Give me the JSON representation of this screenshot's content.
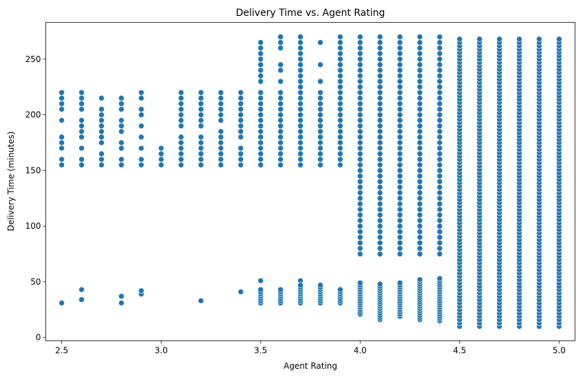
{
  "chart_data": {
    "type": "scatter",
    "title": "Delivery Time vs. Agent Rating",
    "xlabel": "Agent Rating",
    "ylabel": "Delivery Time (minutes)",
    "xlim": [
      2.42,
      5.08
    ],
    "ylim": [
      -3,
      283
    ],
    "xticks": [
      "2.5",
      "3.0",
      "3.5",
      "4.0",
      "4.5",
      "5.0"
    ],
    "yticks": [
      "0",
      "50",
      "100",
      "150",
      "200",
      "250"
    ],
    "grid": false,
    "marker_color": "#1f77b4",
    "points_by_rating": [
      {
        "x": 2.5,
        "y": [
          31,
          155,
          160,
          170,
          175,
          180,
          195,
          205,
          210,
          215,
          220
        ]
      },
      {
        "x": 2.6,
        "y": [
          34,
          43,
          155,
          160,
          170,
          180,
          185,
          190,
          195,
          205,
          210,
          215,
          220
        ]
      },
      {
        "x": 2.7,
        "y": [
          155,
          160,
          165,
          175,
          180,
          185,
          190,
          195,
          200,
          205,
          215
        ]
      },
      {
        "x": 2.8,
        "y": [
          31,
          37,
          155,
          160,
          170,
          175,
          185,
          190,
          195,
          205,
          210,
          215
        ]
      },
      {
        "x": 2.9,
        "y": [
          39,
          42,
          155,
          160,
          170,
          180,
          190,
          200,
          205,
          215,
          220
        ]
      },
      {
        "x": 3.0,
        "y": [
          155,
          160,
          165,
          170
        ]
      },
      {
        "x": 3.1,
        "y": [
          155,
          160,
          165,
          170,
          175,
          180,
          190,
          195,
          200,
          205,
          210,
          215,
          220
        ]
      },
      {
        "x": 3.2,
        "y": [
          33,
          155,
          160,
          165,
          170,
          175,
          180,
          190,
          195,
          200,
          205,
          210,
          215,
          220
        ]
      },
      {
        "x": 3.3,
        "y": [
          155,
          160,
          165,
          170,
          175,
          180,
          185,
          195,
          200,
          205,
          210,
          215,
          220
        ]
      },
      {
        "x": 3.4,
        "y": [
          41,
          155,
          160,
          165,
          170,
          180,
          185,
          190,
          195,
          200,
          205,
          210,
          215,
          220
        ]
      },
      {
        "x": 3.5,
        "y_groups": [
          {
            "from": 31,
            "to": 43,
            "step": 2
          },
          {
            "from": 155,
            "to": 220,
            "step": 5
          }
        ],
        "y": [
          51,
          230,
          235,
          240,
          245,
          250,
          255,
          260,
          265
        ]
      },
      {
        "x": 3.6,
        "y_groups": [
          {
            "from": 31,
            "to": 43,
            "step": 2
          },
          {
            "from": 155,
            "to": 220,
            "step": 5
          }
        ],
        "y": [
          230,
          240,
          245,
          260,
          265,
          270
        ]
      },
      {
        "x": 3.7,
        "y_groups": [
          {
            "from": 31,
            "to": 47,
            "step": 2
          },
          {
            "from": 155,
            "to": 270,
            "step": 5
          }
        ],
        "y": [
          51
        ]
      },
      {
        "x": 3.8,
        "y_groups": [
          {
            "from": 31,
            "to": 47,
            "step": 2
          },
          {
            "from": 155,
            "to": 220,
            "step": 5
          }
        ],
        "y": [
          230,
          245,
          265
        ]
      },
      {
        "x": 3.9,
        "y_groups": [
          {
            "from": 31,
            "to": 43,
            "step": 2
          },
          {
            "from": 155,
            "to": 270,
            "step": 5
          }
        ],
        "y": []
      },
      {
        "x": 4.0,
        "y_groups": [
          {
            "from": 21,
            "to": 49,
            "step": 2
          },
          {
            "from": 75,
            "to": 270,
            "step": 5
          }
        ],
        "y": []
      },
      {
        "x": 4.1,
        "y_groups": [
          {
            "from": 16,
            "to": 48,
            "step": 2
          },
          {
            "from": 75,
            "to": 270,
            "step": 5
          }
        ],
        "y": []
      },
      {
        "x": 4.2,
        "y_groups": [
          {
            "from": 19,
            "to": 49,
            "step": 2
          },
          {
            "from": 75,
            "to": 270,
            "step": 5
          }
        ],
        "y": []
      },
      {
        "x": 4.3,
        "y_groups": [
          {
            "from": 16,
            "to": 53,
            "step": 2
          },
          {
            "from": 75,
            "to": 270,
            "step": 5
          }
        ],
        "y": []
      },
      {
        "x": 4.4,
        "y_groups": [
          {
            "from": 15,
            "to": 53,
            "step": 2
          },
          {
            "from": 75,
            "to": 270,
            "step": 5
          }
        ],
        "y": []
      },
      {
        "x": 4.5,
        "y_groups": [
          {
            "from": 10,
            "to": 270,
            "step": 3
          }
        ],
        "y": []
      },
      {
        "x": 4.6,
        "y_groups": [
          {
            "from": 10,
            "to": 270,
            "step": 3
          }
        ],
        "y": []
      },
      {
        "x": 4.7,
        "y_groups": [
          {
            "from": 10,
            "to": 270,
            "step": 3
          }
        ],
        "y": []
      },
      {
        "x": 4.8,
        "y_groups": [
          {
            "from": 10,
            "to": 270,
            "step": 3
          }
        ],
        "y": []
      },
      {
        "x": 4.9,
        "y_groups": [
          {
            "from": 10,
            "to": 270,
            "step": 3
          }
        ],
        "y": []
      },
      {
        "x": 5.0,
        "y_groups": [
          {
            "from": 10,
            "to": 270,
            "step": 3
          }
        ],
        "y": []
      }
    ]
  }
}
